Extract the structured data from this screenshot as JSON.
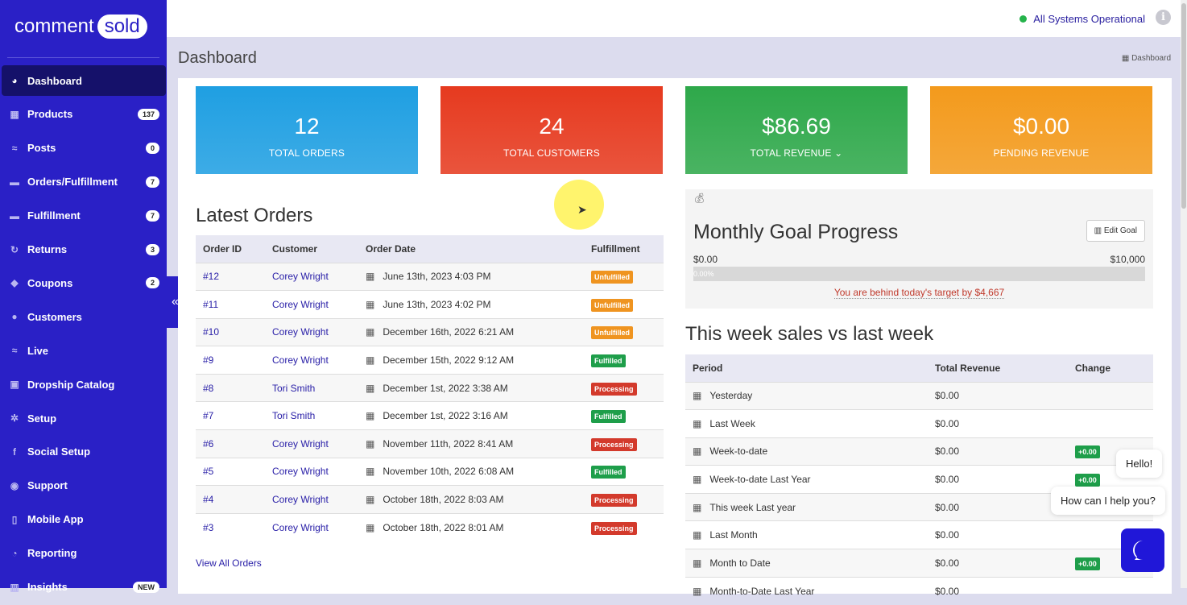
{
  "brand": {
    "word1": "comment",
    "word2": "sold"
  },
  "sidebar": {
    "items": [
      {
        "label": "Dashboard",
        "icon": "dashboard-icon",
        "active": true
      },
      {
        "label": "Products",
        "icon": "grid-icon",
        "badge": "137"
      },
      {
        "label": "Posts",
        "icon": "rss-icon",
        "badge": "0"
      },
      {
        "label": "Orders/Fulfillment",
        "icon": "truck-icon",
        "badge": "7"
      },
      {
        "label": "Fulfillment",
        "icon": "truck-icon",
        "badge": "7"
      },
      {
        "label": "Returns",
        "icon": "refresh-icon",
        "badge": "3"
      },
      {
        "label": "Coupons",
        "icon": "tag-icon",
        "badge": "2"
      },
      {
        "label": "Customers",
        "icon": "user-icon"
      },
      {
        "label": "Live",
        "icon": "rss-icon"
      },
      {
        "label": "Dropship Catalog",
        "icon": "box-icon"
      },
      {
        "label": "Setup",
        "icon": "gears-icon"
      },
      {
        "label": "Social Setup",
        "icon": "facebook-icon"
      },
      {
        "label": "Support",
        "icon": "comments-icon"
      },
      {
        "label": "Mobile App",
        "icon": "mobile-icon"
      },
      {
        "label": "Reporting",
        "icon": "pie-chart-icon"
      },
      {
        "label": "Insights",
        "icon": "bar-chart-icon",
        "badge": "NEW"
      }
    ]
  },
  "topbar": {
    "status": "All Systems Operational",
    "status_color": "#25b34b"
  },
  "page": {
    "title": "Dashboard",
    "breadcrumb": "Dashboard"
  },
  "cards": [
    {
      "value": "12",
      "label": "TOTAL ORDERS",
      "color": "#1f9fe2"
    },
    {
      "value": "24",
      "label": "TOTAL CUSTOMERS",
      "color": "#e63a1f"
    },
    {
      "value": "$86.69",
      "label": "TOTAL REVENUE",
      "color": "#2ea84a",
      "dropdown": true
    },
    {
      "value": "$0.00",
      "label": "PENDING REVENUE",
      "color": "#f39a1c"
    }
  ],
  "orders": {
    "title": "Latest Orders",
    "columns": [
      "Order ID",
      "Customer",
      "Order Date",
      "Fulfillment"
    ],
    "rows": [
      [
        "#12",
        "Corey Wright",
        "June 13th, 2023 4:03 PM",
        "Unfulfilled"
      ],
      [
        "#11",
        "Corey Wright",
        "June 13th, 2023 4:02 PM",
        "Unfulfilled"
      ],
      [
        "#10",
        "Corey Wright",
        "December 16th, 2022 6:21 AM",
        "Unfulfilled"
      ],
      [
        "#9",
        "Corey Wright",
        "December 15th, 2022 9:12 AM",
        "Fulfilled"
      ],
      [
        "#8",
        "Tori Smith",
        "December 1st, 2022 3:38 AM",
        "Processing"
      ],
      [
        "#7",
        "Tori Smith",
        "December 1st, 2022 3:16 AM",
        "Fulfilled"
      ],
      [
        "#6",
        "Corey Wright",
        "November 11th, 2022 8:41 AM",
        "Processing"
      ],
      [
        "#5",
        "Corey Wright",
        "November 10th, 2022 6:08 AM",
        "Fulfilled"
      ],
      [
        "#4",
        "Corey Wright",
        "October 18th, 2022 8:03 AM",
        "Processing"
      ],
      [
        "#3",
        "Corey Wright",
        "October 18th, 2022 8:01 AM",
        "Processing"
      ]
    ],
    "view_all": "View All Orders"
  },
  "goal": {
    "title": "Monthly Goal Progress",
    "edit": "Edit Goal",
    "min": "$0.00",
    "max": "$10,000",
    "progress_pct": 0,
    "progress_label": "0.00%",
    "behind": "You are behind today's target by $4,667"
  },
  "weekly": {
    "title": "This week sales vs last week",
    "columns": [
      "Period",
      "Total Revenue",
      "Change"
    ],
    "rows": [
      [
        "Yesterday",
        "$0.00",
        ""
      ],
      [
        "Last Week",
        "$0.00",
        ""
      ],
      [
        "Week-to-date",
        "$0.00",
        "+0.00"
      ],
      [
        "Week-to-date Last Year",
        "$0.00",
        "+0.00"
      ],
      [
        "This week Last year",
        "$0.00",
        ""
      ],
      [
        "Last Month",
        "$0.00",
        ""
      ],
      [
        "Month to Date",
        "$0.00",
        "+0.00"
      ],
      [
        "Month-to-Date Last Year",
        "$0.00",
        ""
      ]
    ]
  },
  "chat": {
    "hello": "Hello!",
    "help": "How can I help you?"
  }
}
